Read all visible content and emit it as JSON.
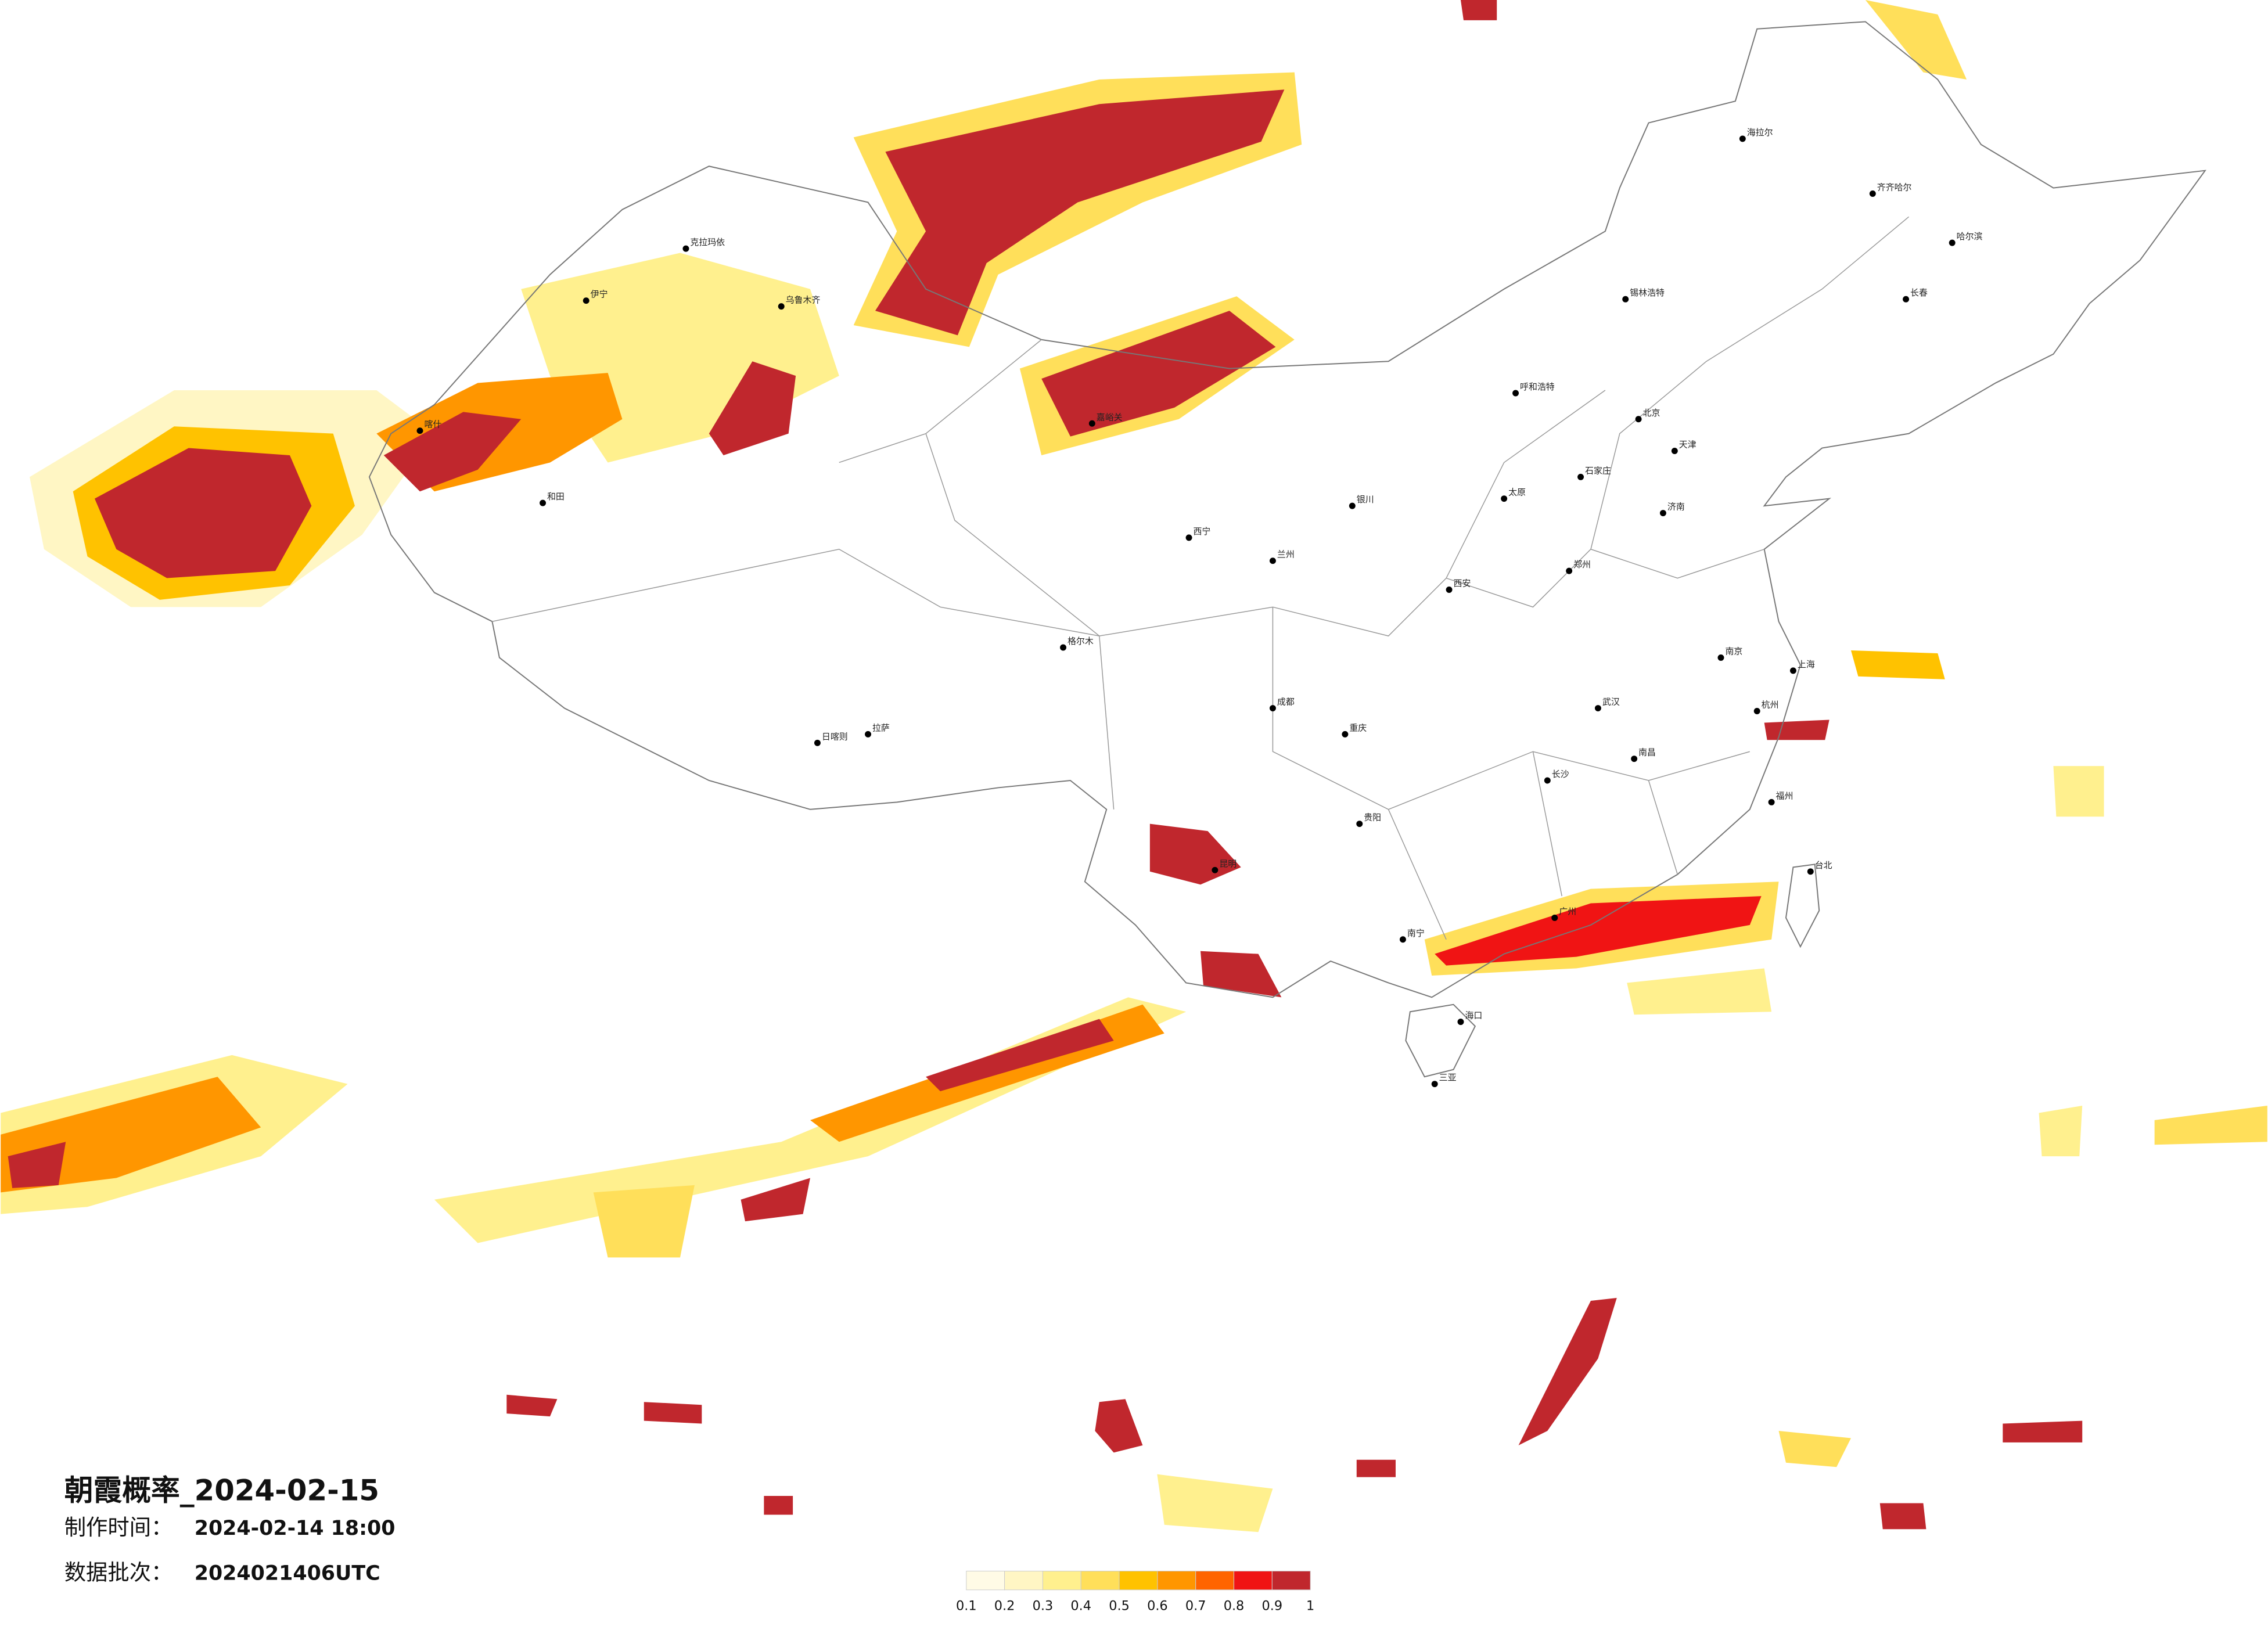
{
  "title": "朝霞概率_2024-02-15",
  "info": [
    {
      "label": "制作时间：",
      "value": "2024-02-14 18:00"
    },
    {
      "label": "数据批次：",
      "value": "2024021406UTC"
    }
  ],
  "legend": {
    "colors": [
      "#fffbe6",
      "#fff6c4",
      "#fff08e",
      "#ffdf5a",
      "#ffc200",
      "#ff9600",
      "#ff6400",
      "#f01414",
      "#c0272d"
    ],
    "ticks": [
      0.1,
      0.2,
      0.3,
      0.4,
      0.5,
      0.6,
      0.7,
      0.8,
      0.9,
      1
    ]
  },
  "cities": [
    "海拉尔",
    "齐齐哈尔",
    "哈尔滨",
    "长春",
    "锡林浩特",
    "呼和浩特",
    "北京",
    "天津",
    "石家庄",
    "太原",
    "济南",
    "郑州",
    "西安",
    "兰州",
    "西宁",
    "银川",
    "拉萨",
    "日喀则",
    "格尔木",
    "和田",
    "喀什",
    "克拉玛依",
    "乌鲁木齐",
    "伊宁",
    "嘉峪关",
    "成都",
    "重庆",
    "贵阳",
    "昆明",
    "南宁",
    "广州",
    "长沙",
    "武汉",
    "南昌",
    "杭州",
    "上海",
    "南京",
    "福州",
    "台北",
    "海口",
    "三亚"
  ]
}
